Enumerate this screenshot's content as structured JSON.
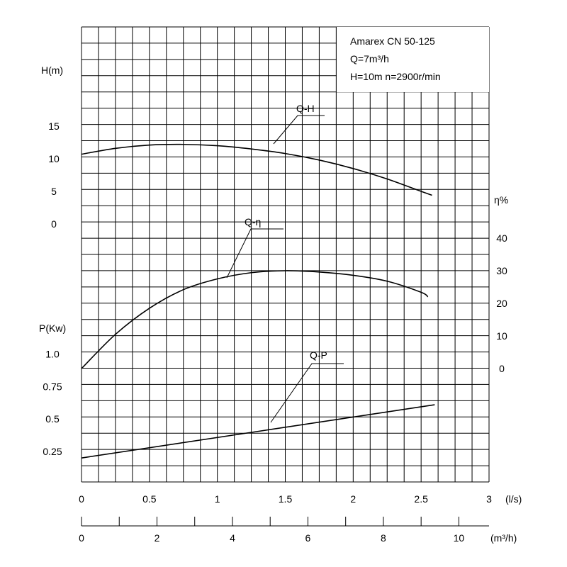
{
  "chart_data": {
    "type": "line",
    "info_box": [
      "Amarex CN 50-125",
      "Q=7m³/h",
      "H=10m  n=2900r/min"
    ],
    "x_axis": {
      "unit": "(l/s)",
      "range": [
        0,
        3
      ],
      "ticks": [
        "0",
        "0.5",
        "1",
        "1.5",
        "2",
        "2.5",
        "3"
      ]
    },
    "x2_axis": {
      "unit": "(m³/h)",
      "range": [
        0,
        10.8
      ],
      "ticks": [
        "0",
        "2",
        "4",
        "6",
        "8",
        "10"
      ]
    },
    "head_axis": {
      "label": "H(m)",
      "ticks": [
        "15",
        "10",
        "5",
        "0"
      ]
    },
    "eff_axis": {
      "label": "η%",
      "ticks": [
        "40",
        "30",
        "20",
        "10",
        "0"
      ]
    },
    "power_axis": {
      "label": "P(Kw)",
      "ticks": [
        "1.0",
        "0.75",
        "0.5",
        "0.25"
      ]
    },
    "series": [
      {
        "name": "Q-H",
        "axis": "head",
        "x": [
          0,
          0.25,
          0.5,
          0.75,
          1.0,
          1.25,
          1.5,
          1.75,
          2.0,
          2.25,
          2.5,
          2.58
        ],
        "y": [
          10.7,
          11.6,
          12.1,
          12.2,
          12.0,
          11.5,
          10.8,
          9.8,
          8.5,
          6.9,
          5.0,
          4.4
        ]
      },
      {
        "name": "Q-η",
        "axis": "eff",
        "x": [
          0,
          0.25,
          0.5,
          0.75,
          1.0,
          1.25,
          1.5,
          1.75,
          2.0,
          2.25,
          2.5,
          2.55
        ],
        "y": [
          0,
          10.5,
          18.5,
          24.2,
          27.5,
          29.4,
          30.0,
          29.6,
          28.6,
          26.8,
          23.4,
          22.0
        ]
      },
      {
        "name": "Q-P",
        "axis": "power",
        "x": [
          0,
          2.6
        ],
        "y": [
          0.2,
          0.61
        ]
      }
    ]
  }
}
